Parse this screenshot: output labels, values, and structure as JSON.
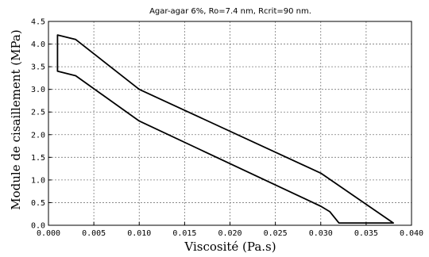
{
  "chart_data": {
    "type": "line",
    "title": "Agar-agar 6%, Ro=7.4 nm, Rcrit=90 nm.",
    "xlabel": "Viscosité (Pa.s)",
    "ylabel": "Module de cisaillement (MPa)",
    "xlim": [
      0,
      0.04
    ],
    "ylim": [
      0,
      4.5
    ],
    "x_ticks": [
      "0.000",
      "0.005",
      "0.010",
      "0.015",
      "0.020",
      "0.025",
      "0.030",
      "0.035",
      "0.040"
    ],
    "y_ticks": [
      "0.0",
      "0.5",
      "1.0",
      "1.5",
      "2.0",
      "2.5",
      "3.0",
      "3.5",
      "4.0",
      "4.5"
    ],
    "grid": true,
    "series": [
      {
        "closed": true,
        "x": [
          0.001,
          0.001,
          0.003,
          0.01,
          0.03,
          0.038,
          0.032,
          0.031,
          0.03,
          0.01,
          0.003,
          0.001
        ],
        "y": [
          3.4,
          4.2,
          4.1,
          3.0,
          1.15,
          0.05,
          0.05,
          0.3,
          0.42,
          2.3,
          3.3,
          3.4
        ]
      }
    ]
  }
}
